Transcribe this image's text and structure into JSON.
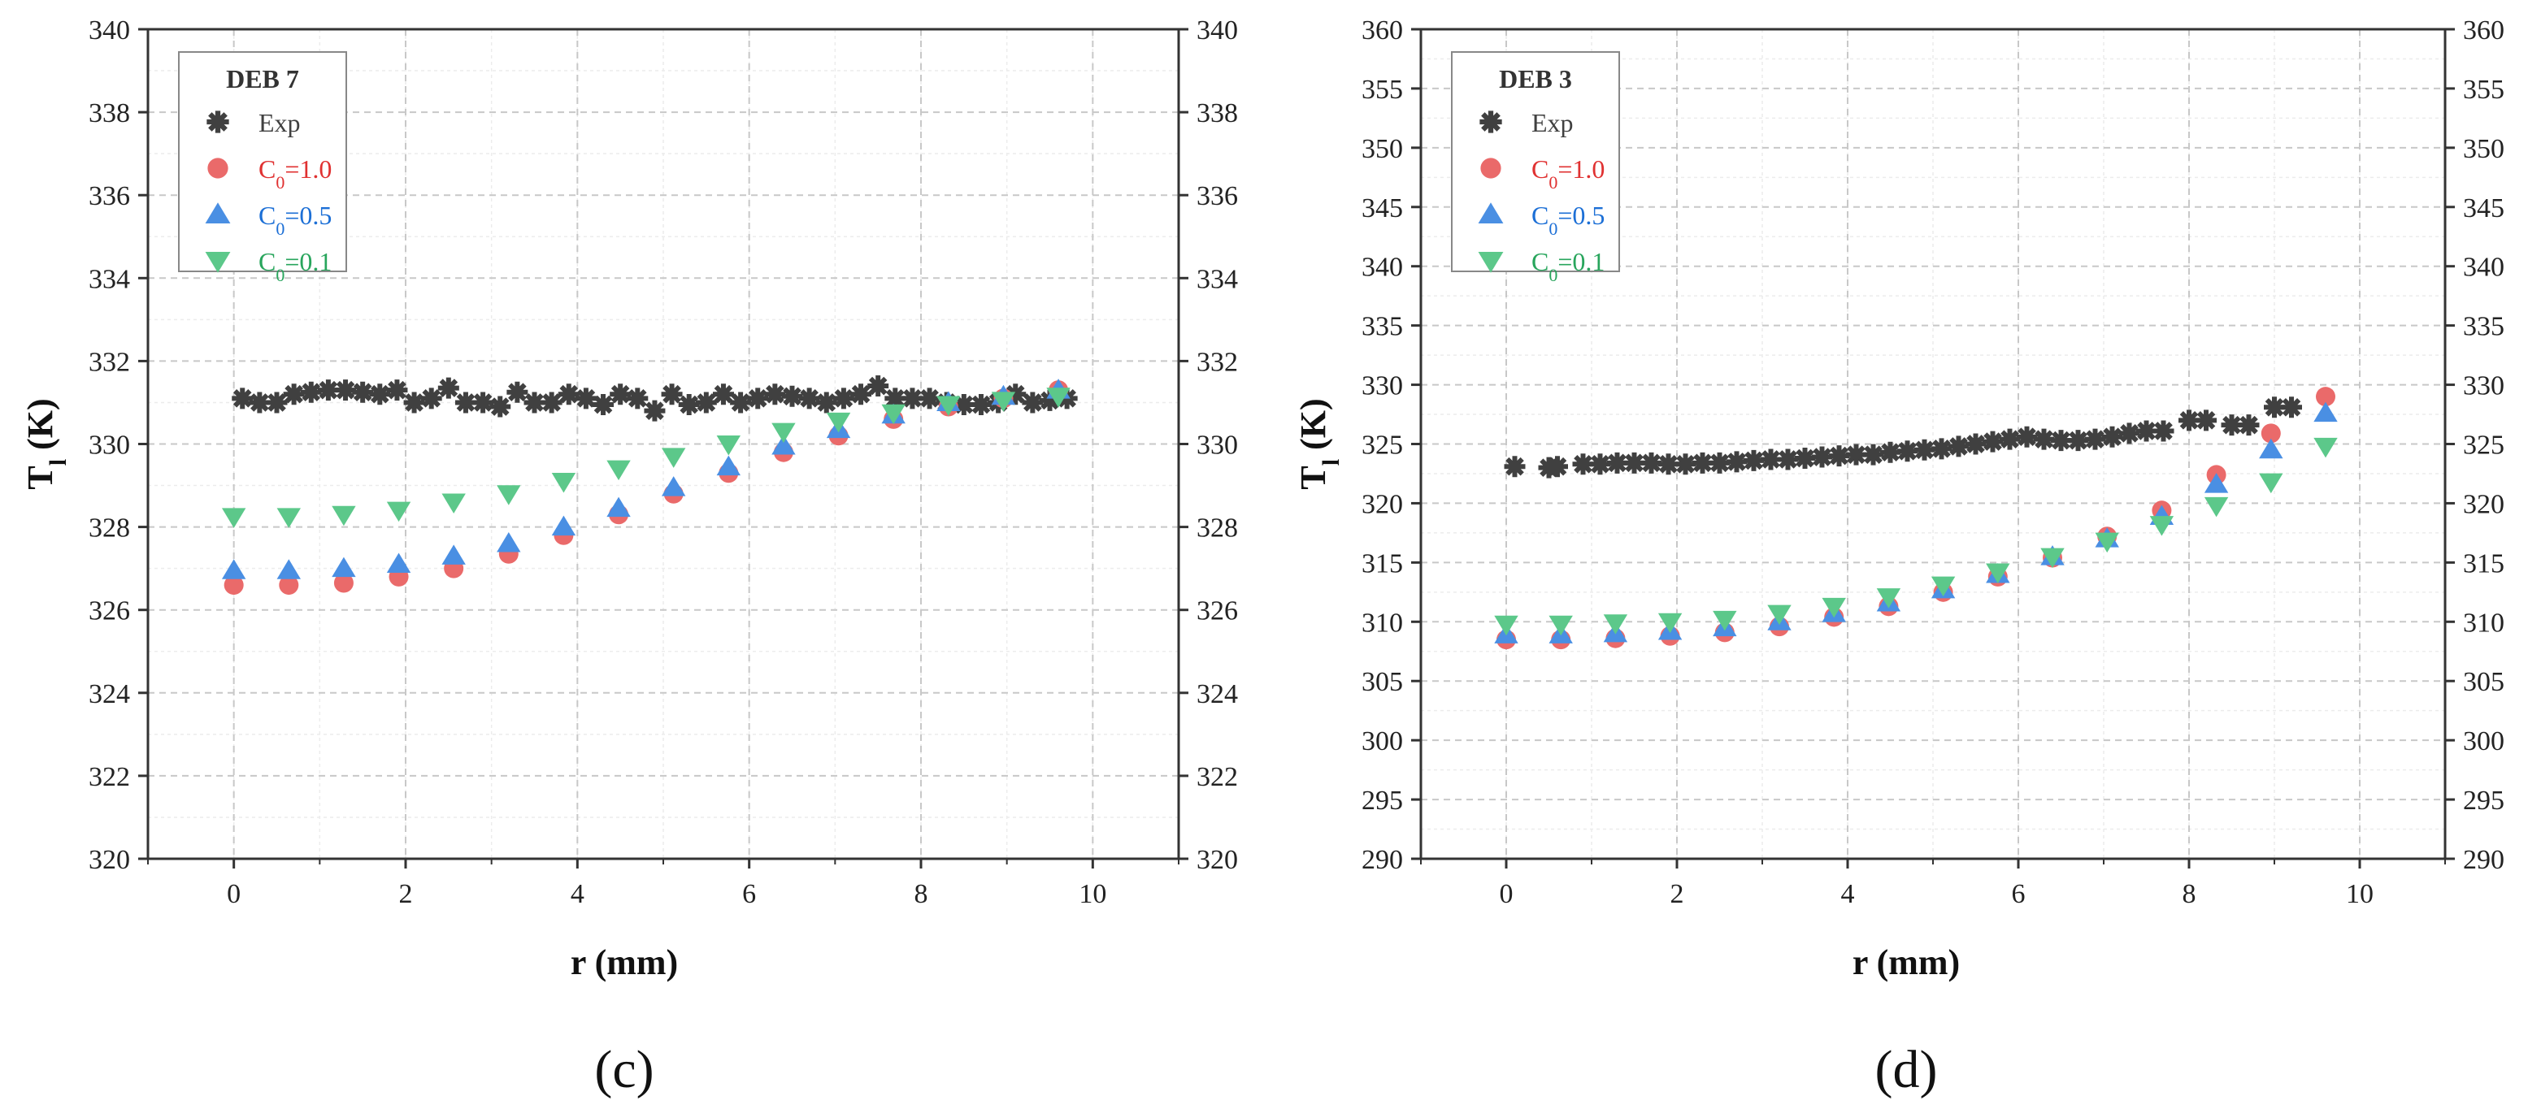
{
  "chart_data": [
    {
      "type": "scatter",
      "panel_label": "(c)",
      "legend_title": "DEB 7",
      "xlabel": "r (mm)",
      "ylabel_main": "T",
      "ylabel_sub": "l",
      "ylabel_unit": " (K)",
      "xlim": [
        -1,
        11
      ],
      "ylim": [
        320,
        340
      ],
      "xticks": [
        0,
        2,
        4,
        6,
        8,
        10
      ],
      "xtick_labels": [
        "0",
        "2",
        "4",
        "6",
        "8",
        "10"
      ],
      "yticks": [
        320,
        322,
        324,
        326,
        328,
        330,
        332,
        334,
        336,
        338,
        340
      ],
      "ytick_labels": [
        "320",
        "322",
        "324",
        "326",
        "328",
        "330",
        "332",
        "334",
        "336",
        "338",
        "340"
      ],
      "legend_position": "top-left",
      "series": [
        {
          "name": "Exp",
          "name_main": "Exp",
          "name_sub": "",
          "name_rest": "",
          "marker": "asterisk",
          "color": "#404040",
          "text_color": "#404040",
          "x": [
            0.1,
            0.3,
            0.5,
            0.7,
            0.9,
            1.1,
            1.3,
            1.5,
            1.7,
            1.9,
            2.1,
            2.3,
            2.5,
            2.7,
            2.9,
            3.1,
            3.3,
            3.5,
            3.7,
            3.9,
            4.1,
            4.3,
            4.5,
            4.7,
            4.9,
            5.1,
            5.3,
            5.5,
            5.7,
            5.9,
            6.1,
            6.3,
            6.5,
            6.7,
            6.9,
            7.1,
            7.3,
            7.5,
            7.7,
            7.9,
            8.1,
            8.3,
            8.5,
            8.7,
            8.9,
            9.1,
            9.3,
            9.5,
            9.7
          ],
          "y": [
            331.1,
            331.0,
            331.0,
            331.2,
            331.25,
            331.3,
            331.3,
            331.25,
            331.2,
            331.3,
            331.0,
            331.1,
            331.35,
            331.0,
            331.0,
            330.9,
            331.25,
            331.0,
            331.0,
            331.2,
            331.1,
            330.95,
            331.2,
            331.1,
            330.8,
            331.2,
            330.95,
            331.0,
            331.2,
            331.0,
            331.1,
            331.2,
            331.15,
            331.1,
            331.0,
            331.1,
            331.2,
            331.4,
            331.1,
            331.1,
            331.1,
            331.0,
            330.95,
            330.95,
            331.0,
            331.2,
            331.0,
            331.05,
            331.1
          ]
        },
        {
          "name": "C0=1.0",
          "name_main": "C",
          "name_sub": "0",
          "name_rest": "=1.0",
          "marker": "circle",
          "color": "#ea6a6a",
          "text_color": "#e03131",
          "x": [
            0,
            0.64,
            1.28,
            1.92,
            2.56,
            3.2,
            3.84,
            4.48,
            5.12,
            5.76,
            6.4,
            7.04,
            7.68,
            8.32,
            8.96,
            9.6
          ],
          "y": [
            326.6,
            326.6,
            326.65,
            326.8,
            327.0,
            327.35,
            327.8,
            328.3,
            328.8,
            329.3,
            329.8,
            330.2,
            330.6,
            330.9,
            331.1,
            331.3
          ]
        },
        {
          "name": "C0=0.5",
          "name_main": "C",
          "name_sub": "0",
          "name_rest": "=0.5",
          "marker": "triangle-up",
          "color": "#4a8fe3",
          "text_color": "#1c6fd6",
          "x": [
            0,
            0.64,
            1.28,
            1.92,
            2.56,
            3.2,
            3.84,
            4.48,
            5.12,
            5.76,
            6.4,
            7.04,
            7.68,
            8.32,
            8.96,
            9.6
          ],
          "y": [
            326.95,
            326.95,
            327.0,
            327.1,
            327.3,
            327.6,
            328.0,
            328.45,
            328.95,
            329.45,
            329.95,
            330.35,
            330.7,
            331.0,
            331.15,
            331.3
          ]
        },
        {
          "name": "C0=0.1",
          "name_main": "C",
          "name_sub": "0",
          "name_rest": "=0.1",
          "marker": "triangle-down",
          "color": "#5cc88a",
          "text_color": "#28a55c",
          "x": [
            0,
            0.64,
            1.28,
            1.92,
            2.56,
            3.2,
            3.84,
            4.48,
            5.12,
            5.76,
            6.4,
            7.04,
            7.68,
            8.32,
            8.96,
            9.6
          ],
          "y": [
            328.25,
            328.25,
            328.3,
            328.4,
            328.6,
            328.8,
            329.1,
            329.4,
            329.7,
            330.0,
            330.3,
            330.55,
            330.75,
            330.95,
            331.05,
            331.15
          ]
        }
      ]
    },
    {
      "type": "scatter",
      "panel_label": "(d)",
      "legend_title": "DEB 3",
      "xlabel": "r (mm)",
      "ylabel_main": "T",
      "ylabel_sub": "l",
      "ylabel_unit": " (K)",
      "xlim": [
        -1,
        11
      ],
      "ylim": [
        290,
        360
      ],
      "xticks": [
        0,
        2,
        4,
        6,
        8,
        10
      ],
      "xtick_labels": [
        "0",
        "2",
        "4",
        "6",
        "8",
        "10"
      ],
      "yticks": [
        290,
        295,
        300,
        305,
        310,
        315,
        320,
        325,
        330,
        335,
        340,
        345,
        350,
        355,
        360
      ],
      "ytick_labels": [
        "290",
        "295",
        "300",
        "305",
        "310",
        "315",
        "320",
        "325",
        "330",
        "335",
        "340",
        "345",
        "350",
        "355",
        "360"
      ],
      "legend_position": "top-left",
      "series": [
        {
          "name": "Exp",
          "name_main": "Exp",
          "name_sub": "",
          "name_rest": "",
          "marker": "asterisk",
          "color": "#404040",
          "text_color": "#404040",
          "x": [
            0.1,
            0.5,
            0.6,
            0.9,
            1.1,
            1.3,
            1.5,
            1.7,
            1.9,
            2.1,
            2.3,
            2.5,
            2.7,
            2.9,
            3.1,
            3.3,
            3.5,
            3.7,
            3.9,
            4.1,
            4.3,
            4.5,
            4.7,
            4.9,
            5.1,
            5.3,
            5.5,
            5.7,
            5.9,
            6.1,
            6.3,
            6.5,
            6.7,
            6.9,
            7.1,
            7.3,
            7.5,
            7.7,
            8.0,
            8.2,
            8.5,
            8.7,
            9.0,
            9.2
          ],
          "y": [
            323.1,
            323.0,
            323.1,
            323.3,
            323.3,
            323.4,
            323.4,
            323.4,
            323.3,
            323.3,
            323.4,
            323.4,
            323.5,
            323.6,
            323.7,
            323.7,
            323.8,
            323.9,
            324.0,
            324.1,
            324.1,
            324.3,
            324.4,
            324.5,
            324.6,
            324.8,
            325.0,
            325.2,
            325.4,
            325.6,
            325.4,
            325.3,
            325.3,
            325.4,
            325.6,
            325.9,
            326.1,
            326.1,
            327.0,
            327.0,
            326.6,
            326.6,
            328.1,
            328.1
          ]
        },
        {
          "name": "C0=1.0",
          "name_main": "C",
          "name_sub": "0",
          "name_rest": "=1.0",
          "marker": "circle",
          "color": "#ea6a6a",
          "text_color": "#e03131",
          "x": [
            0,
            0.64,
            1.28,
            1.92,
            2.56,
            3.2,
            3.84,
            4.48,
            5.12,
            5.76,
            6.4,
            7.04,
            7.68,
            8.32,
            8.96,
            9.6
          ],
          "y": [
            308.5,
            308.5,
            308.6,
            308.8,
            309.1,
            309.6,
            310.4,
            311.3,
            312.5,
            313.8,
            315.4,
            317.2,
            319.4,
            322.4,
            325.9,
            329.0
          ]
        },
        {
          "name": "C0=0.5",
          "name_main": "C",
          "name_sub": "0",
          "name_rest": "=0.5",
          "marker": "triangle-up",
          "color": "#4a8fe3",
          "text_color": "#1c6fd6",
          "x": [
            0,
            0.64,
            1.28,
            1.92,
            2.56,
            3.2,
            3.84,
            4.48,
            5.12,
            5.76,
            6.4,
            7.04,
            7.68,
            8.32,
            8.96,
            9.6
          ],
          "y": [
            308.9,
            308.9,
            309.0,
            309.2,
            309.5,
            310.0,
            310.7,
            311.6,
            312.7,
            314.0,
            315.5,
            317.0,
            318.9,
            321.6,
            324.5,
            327.6
          ]
        },
        {
          "name": "C0=0.1",
          "name_main": "C",
          "name_sub": "0",
          "name_rest": "=0.1",
          "marker": "triangle-down",
          "color": "#5cc88a",
          "text_color": "#28a55c",
          "x": [
            0,
            0.64,
            1.28,
            1.92,
            2.56,
            3.2,
            3.84,
            4.48,
            5.12,
            5.76,
            6.4,
            7.04,
            7.68,
            8.32,
            8.96,
            9.6
          ],
          "y": [
            309.8,
            309.8,
            309.9,
            310.0,
            310.2,
            310.7,
            311.3,
            312.1,
            313.1,
            314.2,
            315.5,
            316.8,
            318.2,
            319.8,
            321.8,
            324.8
          ]
        }
      ]
    }
  ]
}
